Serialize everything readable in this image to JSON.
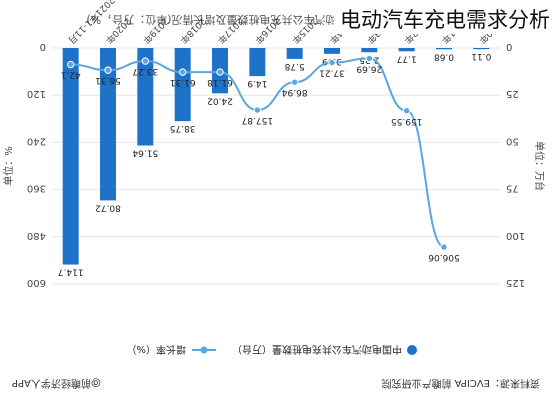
{
  "overlay_title": "电动汽车充电需求分析",
  "colors": {
    "bar": "#1e73c9",
    "line": "#5aa7df",
    "text": "#444444",
    "grid": "#e6e6e6",
    "source_text": "#333333"
  },
  "footer": {
    "source": "资料来源：EVCIPA 前瞻产业研究院",
    "brand": "@前瞻经济学人APP"
  },
  "chart_data": {
    "type": "bar",
    "title": "2015-2021年11月中国电动汽车公共充电桩数量及增长情况(单位：万台，%)",
    "categories": [
      "2010年",
      "2011年",
      "2012年",
      "2013年",
      "2014年",
      "2015年",
      "2016年",
      "2017年",
      "2018年",
      "2019年",
      "2020年",
      "2021年1-11月"
    ],
    "y_left": {
      "label": "单位：万台",
      "ticks": [
        "0",
        "25",
        "50",
        "75",
        "100",
        "125"
      ],
      "lim": [
        0,
        125
      ]
    },
    "y_right": {
      "label": "单位：%",
      "ticks": [
        "0",
        "120",
        "240",
        "360",
        "480",
        "600"
      ],
      "lim": [
        0,
        600
      ]
    },
    "series": [
      {
        "name": "中国电动汽车公共充电桩数量（万台）",
        "kind": "bar",
        "axis": "left",
        "values": [
          0.11,
          0.68,
          1.77,
          2.25,
          3.09,
          5.78,
          14.9,
          24.02,
          38.75,
          51.64,
          80.72,
          114.7
        ],
        "labels": [
          "0.11",
          "0.68",
          "1.77",
          "2.25",
          "3.09",
          "5.78",
          "14.9",
          "24.02",
          "38.75",
          "51.64",
          "80.72",
          "114.7"
        ]
      },
      {
        "name": "增长率（%）",
        "kind": "line",
        "axis": "right",
        "values": [
          null,
          506.06,
          159.55,
          26.69,
          37.21,
          86.94,
          157.87,
          61.18,
          61.31,
          33.27,
          56.31,
          42.1
        ],
        "labels": [
          "",
          "506.06",
          "159.55",
          "26.69",
          "37.21",
          "86.94",
          "157.87",
          "61.18",
          "61.31",
          "33.27",
          "56.31",
          "42.1"
        ]
      }
    ],
    "legend": {
      "placement": "bottom",
      "items": [
        "中国电动汽车公共充电桩数量（万台）",
        "增长率（%）"
      ]
    },
    "grid": true
  }
}
